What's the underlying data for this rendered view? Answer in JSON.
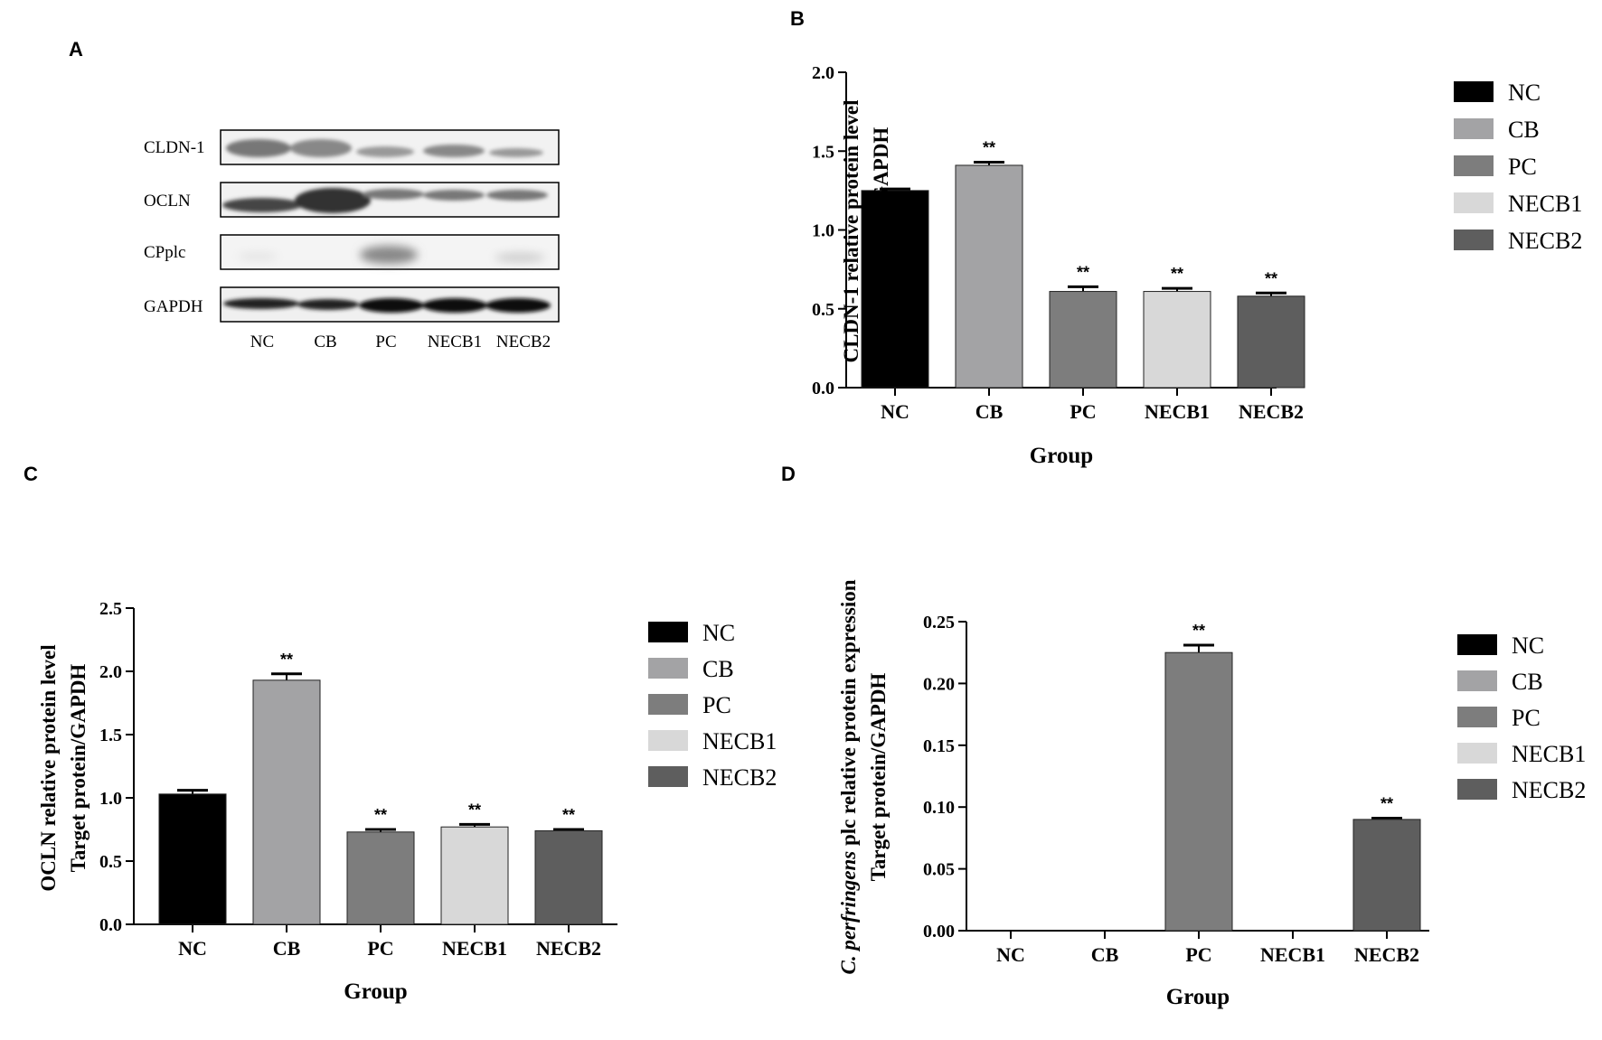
{
  "panels": {
    "A": "A",
    "B": "B",
    "C": "C",
    "D": "D"
  },
  "blot": {
    "rows": [
      "CLDN-1",
      "OCLN",
      "CPplc",
      "GAPDH"
    ],
    "lanes": [
      "NC",
      "CB",
      "PC",
      "NECB1",
      "NECB2"
    ]
  },
  "colors": {
    "NC": "#000000",
    "CB": "#a3a3a5",
    "PC": "#7d7d7d",
    "NECB1": "#d8d8d8",
    "NECB2": "#5e5e5e"
  },
  "chart_data": [
    {
      "panel": "B",
      "type": "bar",
      "categories": [
        "NC",
        "CB",
        "PC",
        "NECB1",
        "NECB2"
      ],
      "values": [
        1.25,
        1.41,
        0.61,
        0.61,
        0.58
      ],
      "errors": [
        0.01,
        0.02,
        0.03,
        0.02,
        0.02
      ],
      "significance": [
        "",
        "**",
        "**",
        "**",
        "**"
      ],
      "xlabel": "Group",
      "ylabel_line1": "CLDN-1 relative protein level",
      "ylabel_line2": "Target protein/GAPDH",
      "ylim": [
        0,
        2.0
      ],
      "yticks": [
        "0.0",
        "0.5",
        "1.0",
        "1.5",
        "2.0"
      ],
      "tick_values": [
        0,
        0.5,
        1.0,
        1.5,
        2.0
      ],
      "legend": [
        "NC",
        "CB",
        "PC",
        "NECB1",
        "NECB2"
      ]
    },
    {
      "panel": "C",
      "type": "bar",
      "categories": [
        "NC",
        "CB",
        "PC",
        "NECB1",
        "NECB2"
      ],
      "values": [
        1.03,
        1.93,
        0.73,
        0.77,
        0.74
      ],
      "errors": [
        0.03,
        0.05,
        0.02,
        0.02,
        0.01
      ],
      "significance": [
        "",
        "**",
        "**",
        "**",
        "**"
      ],
      "xlabel": "Group",
      "ylabel_line1": "OCLN relative protein level",
      "ylabel_line2": "Target protein/GAPDH",
      "ylim": [
        0,
        2.5
      ],
      "yticks": [
        "0.0",
        "0.5",
        "1.0",
        "1.5",
        "2.0",
        "2.5"
      ],
      "tick_values": [
        0,
        0.5,
        1.0,
        1.5,
        2.0,
        2.5
      ],
      "legend": [
        "NC",
        "CB",
        "PC",
        "NECB1",
        "NECB2"
      ]
    },
    {
      "panel": "D",
      "type": "bar",
      "categories": [
        "NC",
        "CB",
        "PC",
        "NECB1",
        "NECB2"
      ],
      "values": [
        0,
        0,
        0.225,
        0,
        0.09
      ],
      "errors": [
        0,
        0,
        0.006,
        0,
        0.001
      ],
      "significance": [
        "",
        "",
        "**",
        "",
        "**"
      ],
      "xlabel": "Group",
      "ylabel_italic": "C. perfringens",
      "ylabel_line1": " plc relative protein expression",
      "ylabel_line2": "Target protein/GAPDH",
      "ylim": [
        0,
        0.25
      ],
      "yticks": [
        "0.00",
        "0.05",
        "0.10",
        "0.15",
        "0.20",
        "0.25"
      ],
      "tick_values": [
        0,
        0.05,
        0.1,
        0.15,
        0.2,
        0.25
      ],
      "legend": [
        "NC",
        "CB",
        "PC",
        "NECB1",
        "NECB2"
      ]
    }
  ]
}
